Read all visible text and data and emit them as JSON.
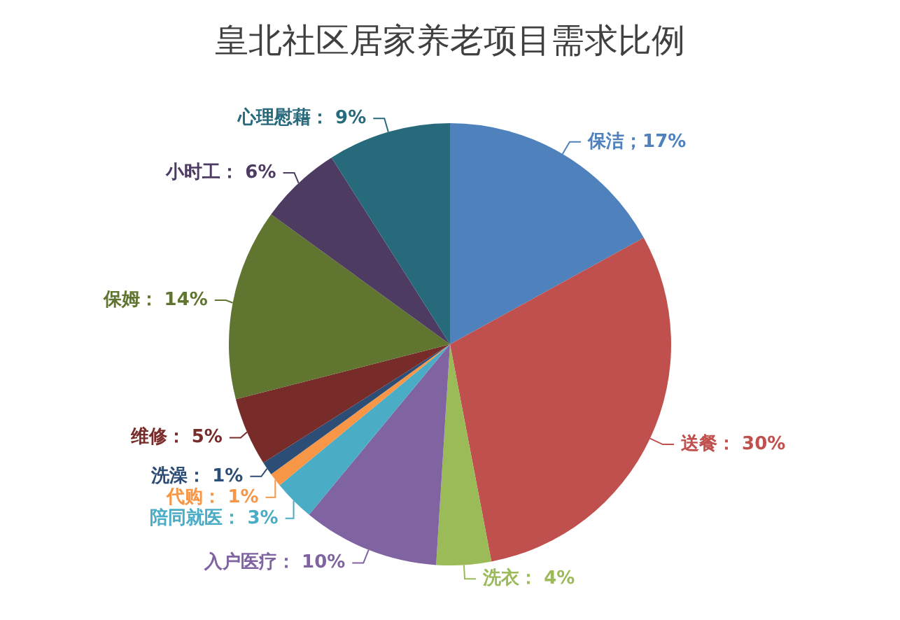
{
  "chart_data": {
    "type": "pie",
    "title": "皇北社区居家养老项目需求比例",
    "categories": [
      "保洁",
      "送餐",
      "洗衣",
      "入户医疗",
      "陪同就医",
      "代购",
      "洗澡",
      "维修",
      "保姆",
      "小时工",
      "心理慰藉"
    ],
    "values": [
      17,
      30,
      4,
      10,
      3,
      1,
      1,
      5,
      14,
      6,
      9
    ],
    "colors": [
      "#4f81bd",
      "#c0504d",
      "#9bbb59",
      "#8064a2",
      "#4bacc6",
      "#f79646",
      "#2c4d75",
      "#772c2a",
      "#5f7530",
      "#4d3b62",
      "#276a7c"
    ],
    "value_labels": [
      "；17%",
      "： 30%",
      "： 4%",
      "： 10%",
      "： 3%",
      "： 1%",
      "： 1%",
      "： 5%",
      "： 14%",
      "： 6%",
      "： 9%"
    ]
  }
}
